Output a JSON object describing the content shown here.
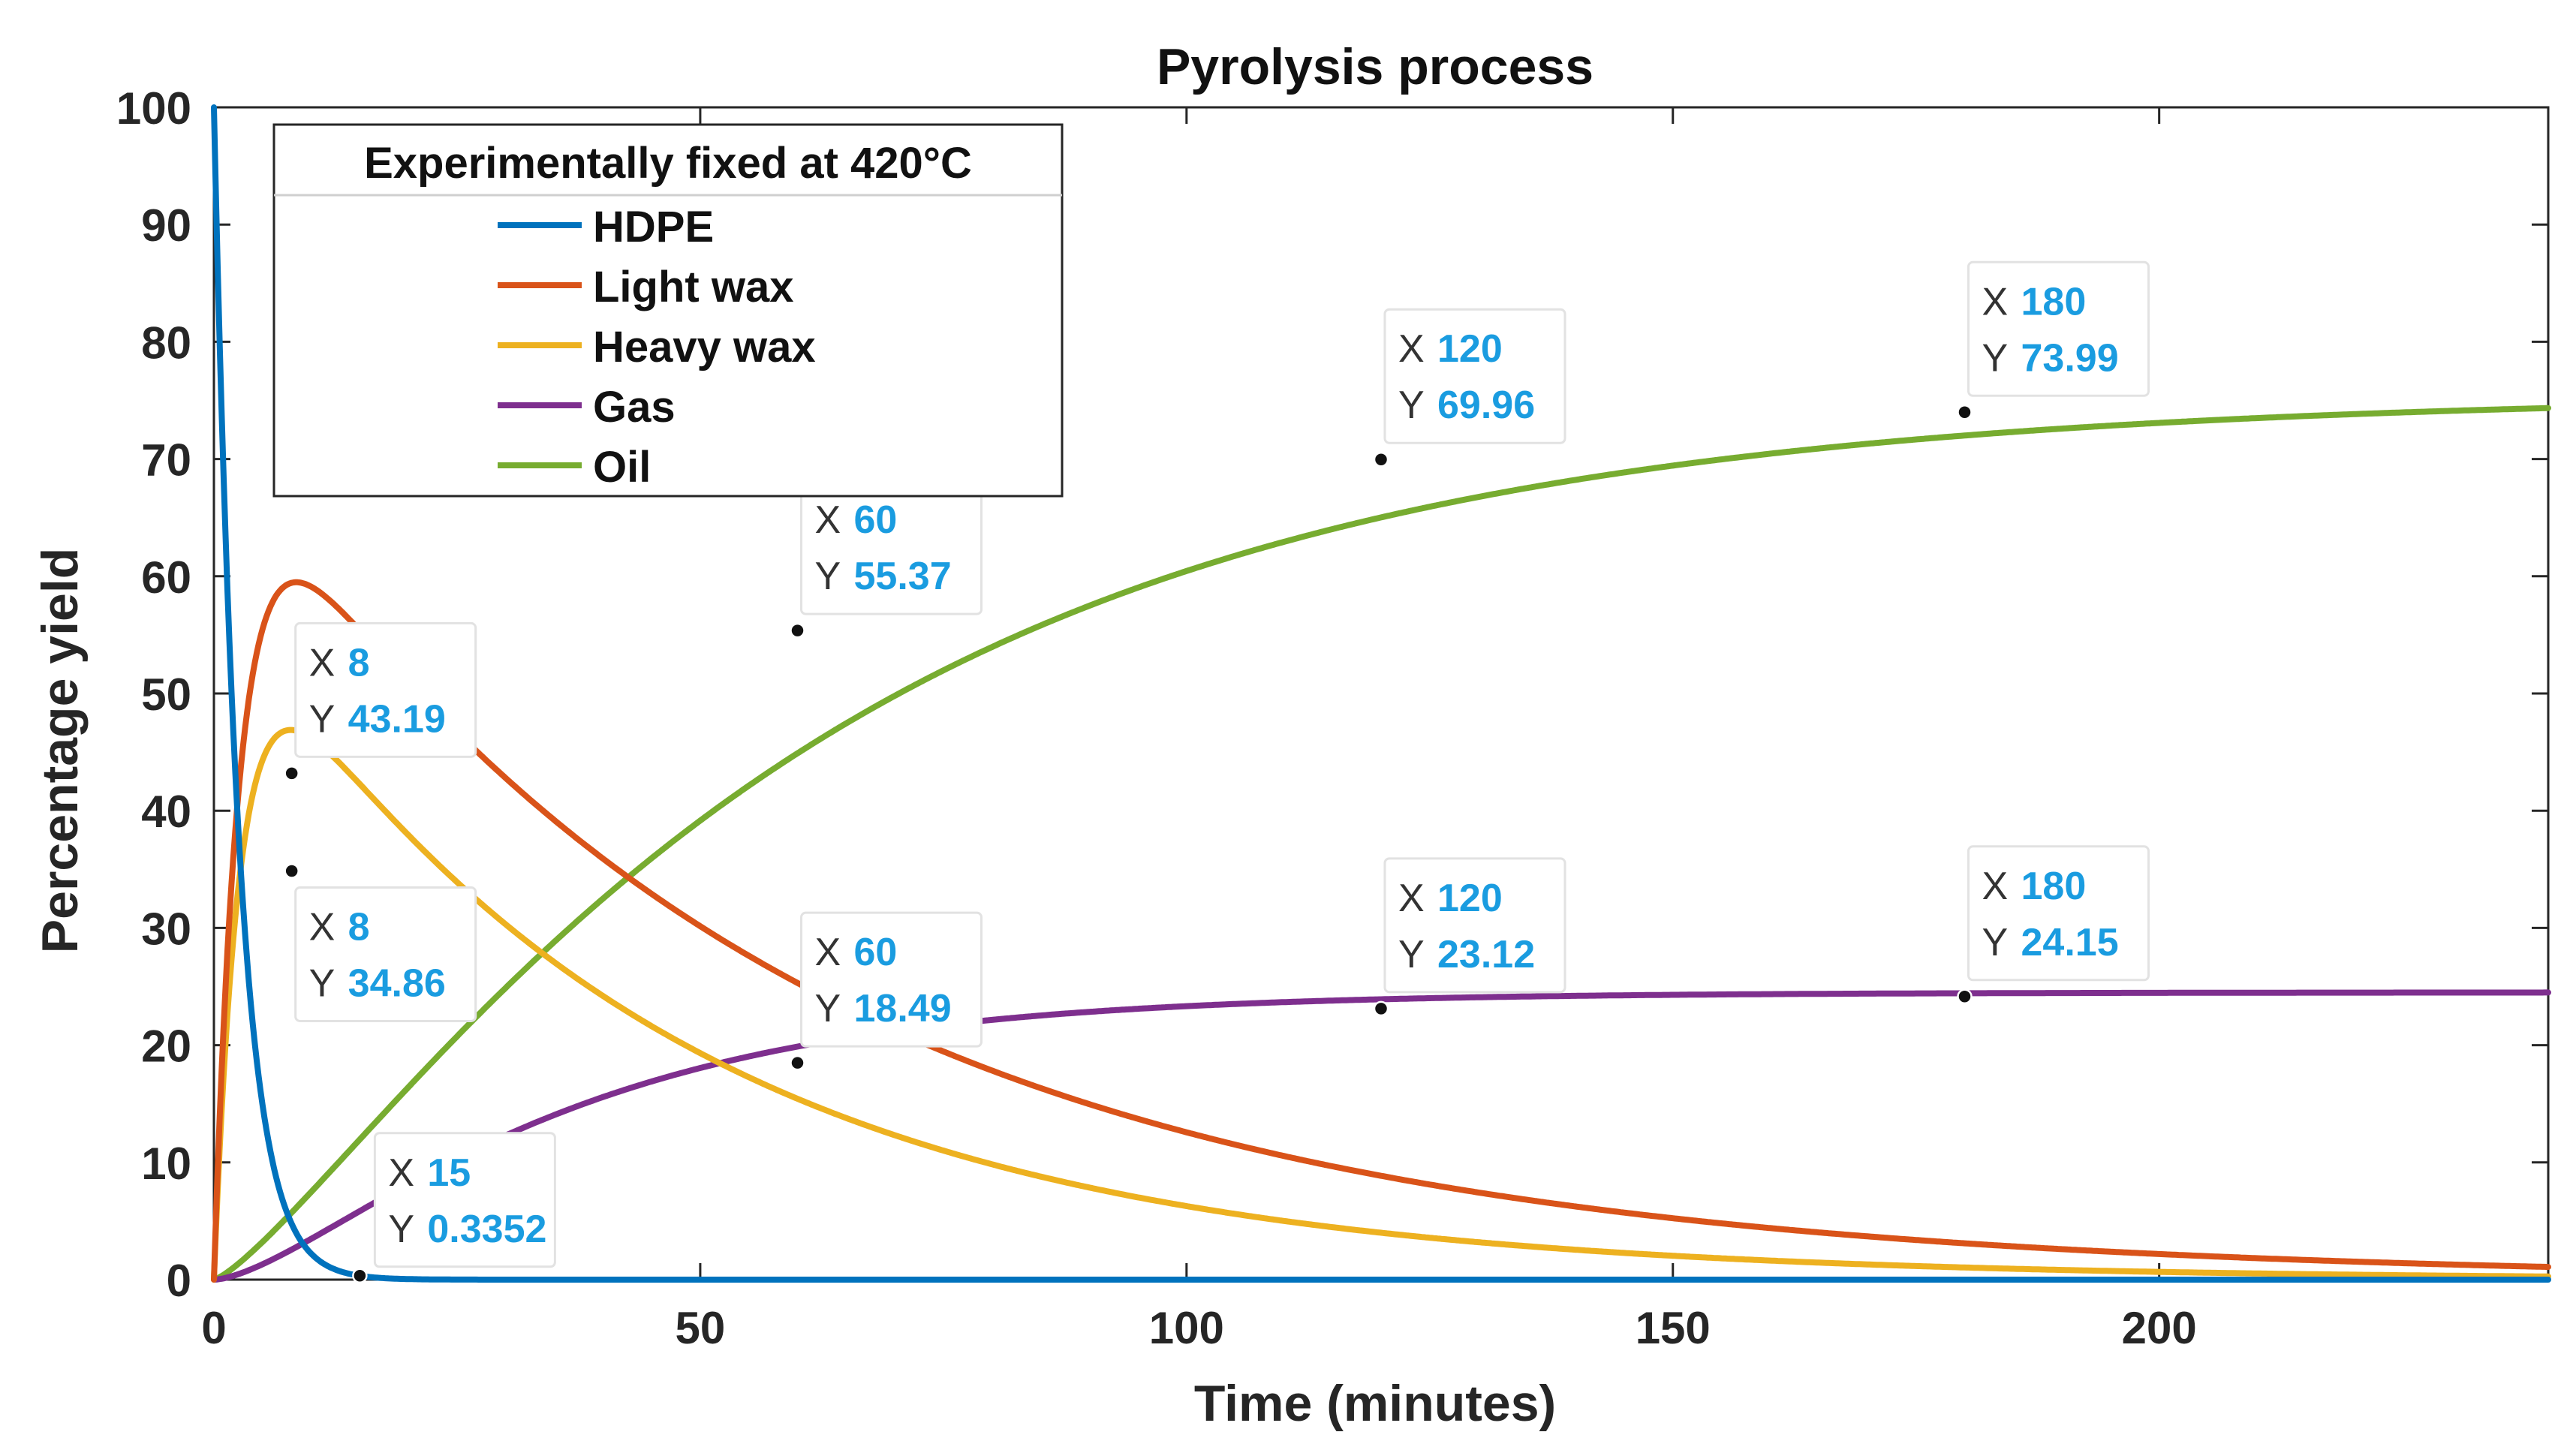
{
  "chart_data": {
    "type": "line",
    "title": "Pyrolysis process",
    "xlabel": "Time (minutes)",
    "ylabel": "Percentage yield",
    "xlim": [
      0,
      240
    ],
    "ylim": [
      0,
      100
    ],
    "xticks": [
      0,
      50,
      100,
      150,
      200
    ],
    "yticks": [
      0,
      10,
      20,
      30,
      40,
      50,
      60,
      70,
      80,
      90,
      100
    ],
    "grid": false,
    "legend": {
      "title": "Experimentally fixed at 420°C",
      "position": "top-left",
      "entries": [
        "HDPE",
        "Light wax",
        "Heavy wax",
        "Gas",
        "Oil"
      ]
    },
    "series": [
      {
        "name": "HDPE",
        "color": "#0072BD",
        "kind": "hdpe",
        "a": 0.381
      },
      {
        "name": "Light wax",
        "color": "#D95319",
        "kind": "lwax",
        "a": 0.381,
        "b": 0.0175,
        "c": 0.69
      },
      {
        "name": "Heavy wax",
        "color": "#EDB120",
        "kind": "hwax",
        "a": 0.381,
        "d": 0.0225,
        "f": 0.56
      },
      {
        "name": "Gas",
        "color": "#7E2F8E",
        "kind": "sat",
        "A": 24.5,
        "k": 0.035,
        "n": 1.6
      },
      {
        "name": "Oil",
        "color": "#77AC30",
        "kind": "sat",
        "A": 75.5,
        "k": 0.0185,
        "n": 1.3
      }
    ],
    "datatips": [
      {
        "series": "Light wax",
        "x": "8",
        "y": "43.19",
        "xv": 8,
        "yv": 43.19,
        "pos": "above"
      },
      {
        "series": "Heavy wax",
        "x": "8",
        "y": "34.86",
        "xv": 8,
        "yv": 34.86,
        "pos": "below"
      },
      {
        "series": "HDPE",
        "x": "15",
        "y": "0.3352",
        "xv": 15,
        "yv": 0.3352,
        "pos": "above-right"
      },
      {
        "series": "Oil",
        "x": "60",
        "y": "55.37",
        "xv": 60,
        "yv": 55.37,
        "pos": "above"
      },
      {
        "series": "Oil",
        "x": "120",
        "y": "69.96",
        "xv": 120,
        "yv": 69.96,
        "pos": "above"
      },
      {
        "series": "Oil",
        "x": "180",
        "y": "73.99",
        "xv": 180,
        "yv": 73.99,
        "pos": "above"
      },
      {
        "series": "Gas",
        "x": "60",
        "y": "18.49",
        "xv": 60,
        "yv": 18.49,
        "pos": "above"
      },
      {
        "series": "Gas",
        "x": "120",
        "y": "23.12",
        "xv": 120,
        "yv": 23.12,
        "pos": "above"
      },
      {
        "series": "Gas",
        "x": "180",
        "y": "24.15",
        "xv": 180,
        "yv": 24.15,
        "pos": "above"
      }
    ],
    "datatip_labels": {
      "x": "X",
      "y": "Y"
    },
    "datatip_value_color": "#1A9CE0"
  }
}
